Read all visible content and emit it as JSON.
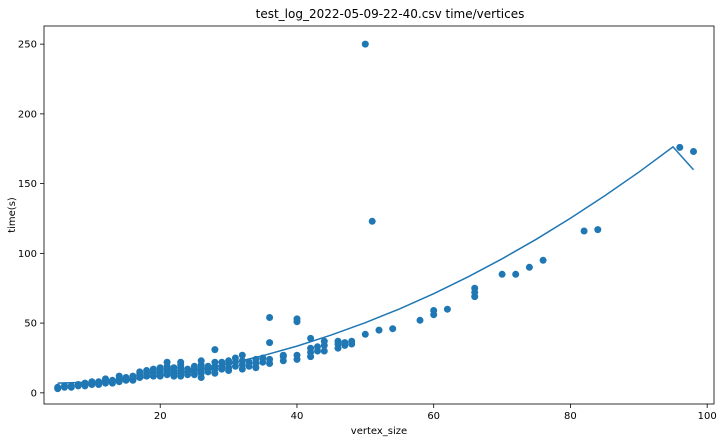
{
  "chart_data": {
    "type": "scatter",
    "title": "test_log_2022-05-09-22-40.csv time/vertices",
    "xlabel": "vertex_size",
    "ylabel": "time(s)",
    "xlim": [
      3,
      101
    ],
    "ylim": [
      -8,
      263
    ],
    "xticks": [
      20,
      40,
      60,
      80,
      100
    ],
    "yticks": [
      0,
      50,
      100,
      150,
      200,
      250
    ],
    "grid": false,
    "color": "#1f77b4",
    "points": [
      [
        5,
        3
      ],
      [
        5,
        4
      ],
      [
        6,
        4
      ],
      [
        6,
        5
      ],
      [
        7,
        4
      ],
      [
        7,
        5
      ],
      [
        8,
        5
      ],
      [
        8,
        6
      ],
      [
        9,
        6
      ],
      [
        9,
        7
      ],
      [
        9,
        5
      ],
      [
        10,
        6
      ],
      [
        10,
        7
      ],
      [
        10,
        8
      ],
      [
        11,
        6
      ],
      [
        11,
        7
      ],
      [
        11,
        8
      ],
      [
        12,
        7
      ],
      [
        12,
        8
      ],
      [
        12,
        9
      ],
      [
        12,
        10
      ],
      [
        13,
        7
      ],
      [
        13,
        8
      ],
      [
        13,
        9
      ],
      [
        14,
        8
      ],
      [
        14,
        9
      ],
      [
        14,
        10
      ],
      [
        14,
        12
      ],
      [
        15,
        9
      ],
      [
        15,
        10
      ],
      [
        15,
        11
      ],
      [
        16,
        9
      ],
      [
        16,
        10
      ],
      [
        16,
        12
      ],
      [
        17,
        11
      ],
      [
        17,
        13
      ],
      [
        17,
        15
      ],
      [
        18,
        12
      ],
      [
        18,
        14
      ],
      [
        18,
        16
      ],
      [
        19,
        12
      ],
      [
        19,
        14
      ],
      [
        19,
        15
      ],
      [
        19,
        17
      ],
      [
        20,
        12
      ],
      [
        20,
        14
      ],
      [
        20,
        16
      ],
      [
        20,
        18
      ],
      [
        21,
        13
      ],
      [
        21,
        15
      ],
      [
        21,
        17
      ],
      [
        21,
        19
      ],
      [
        21,
        22
      ],
      [
        22,
        12
      ],
      [
        22,
        14
      ],
      [
        22,
        16
      ],
      [
        22,
        18
      ],
      [
        23,
        12
      ],
      [
        23,
        14
      ],
      [
        23,
        16
      ],
      [
        23,
        18
      ],
      [
        23,
        20
      ],
      [
        23,
        22
      ],
      [
        24,
        13
      ],
      [
        24,
        15
      ],
      [
        24,
        17
      ],
      [
        25,
        13
      ],
      [
        25,
        15
      ],
      [
        25,
        17
      ],
      [
        25,
        19
      ],
      [
        26,
        11
      ],
      [
        26,
        14
      ],
      [
        26,
        16
      ],
      [
        26,
        18
      ],
      [
        26,
        20
      ],
      [
        26,
        23
      ],
      [
        27,
        15
      ],
      [
        27,
        17
      ],
      [
        27,
        19
      ],
      [
        28,
        14
      ],
      [
        28,
        17
      ],
      [
        28,
        19
      ],
      [
        28,
        22
      ],
      [
        28,
        31
      ],
      [
        29,
        17
      ],
      [
        29,
        19
      ],
      [
        29,
        22
      ],
      [
        30,
        16
      ],
      [
        30,
        18
      ],
      [
        30,
        21
      ],
      [
        30,
        23
      ],
      [
        31,
        19
      ],
      [
        31,
        22
      ],
      [
        31,
        25
      ],
      [
        32,
        17
      ],
      [
        32,
        20
      ],
      [
        32,
        23
      ],
      [
        32,
        27
      ],
      [
        33,
        19
      ],
      [
        33,
        22
      ],
      [
        34,
        18
      ],
      [
        34,
        21
      ],
      [
        34,
        24
      ],
      [
        35,
        22
      ],
      [
        35,
        25
      ],
      [
        36,
        21
      ],
      [
        36,
        24
      ],
      [
        36,
        36
      ],
      [
        36,
        54
      ],
      [
        38,
        23
      ],
      [
        38,
        26
      ],
      [
        38,
        27
      ],
      [
        40,
        24
      ],
      [
        40,
        27
      ],
      [
        40,
        51
      ],
      [
        40,
        53
      ],
      [
        42,
        26
      ],
      [
        42,
        29
      ],
      [
        42,
        32
      ],
      [
        42,
        39
      ],
      [
        43,
        30
      ],
      [
        43,
        33
      ],
      [
        44,
        30
      ],
      [
        44,
        34
      ],
      [
        44,
        37
      ],
      [
        46,
        32
      ],
      [
        46,
        35
      ],
      [
        46,
        37
      ],
      [
        47,
        34
      ],
      [
        47,
        36
      ],
      [
        48,
        35
      ],
      [
        48,
        37
      ],
      [
        50,
        42
      ],
      [
        50,
        250
      ],
      [
        51,
        123
      ],
      [
        52,
        45
      ],
      [
        54,
        46
      ],
      [
        58,
        52
      ],
      [
        60,
        56
      ],
      [
        60,
        59
      ],
      [
        62,
        60
      ],
      [
        66,
        69
      ],
      [
        66,
        72
      ],
      [
        66,
        75
      ],
      [
        70,
        85
      ],
      [
        72,
        85
      ],
      [
        74,
        90
      ],
      [
        76,
        95
      ],
      [
        82,
        116
      ],
      [
        84,
        117
      ],
      [
        96,
        176
      ],
      [
        98,
        173
      ]
    ],
    "fit_line": {
      "x": [
        5,
        10,
        15,
        20,
        25,
        30,
        35,
        40,
        45,
        50,
        55,
        60,
        65,
        70,
        75,
        80,
        85,
        90,
        95,
        98
      ],
      "y": [
        7,
        7.7,
        9.4,
        12.2,
        16,
        20.8,
        26.6,
        33.5,
        41.4,
        50.3,
        60.2,
        71.1,
        83.1,
        96.1,
        110.1,
        125.1,
        141.2,
        158.2,
        176.3,
        160
      ]
    }
  }
}
